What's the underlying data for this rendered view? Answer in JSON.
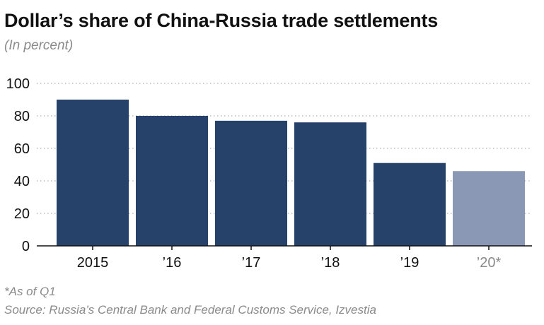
{
  "chart_data": {
    "type": "bar",
    "title": "Dollar’s share of China-Russia trade settlements",
    "subtitle": "(In percent)",
    "categories": [
      "2015",
      "’16",
      "’17",
      "’18",
      "’19",
      "’20*"
    ],
    "values": [
      90,
      80,
      77,
      76,
      51,
      46
    ],
    "ylim": [
      0,
      100
    ],
    "yticks": [
      0,
      20,
      40,
      60,
      80,
      100
    ],
    "grid": true,
    "bar_colors": [
      "#26426b",
      "#26426b",
      "#26426b",
      "#26426b",
      "#26426b",
      "#8a98b6"
    ],
    "tick_label_colors": [
      "#111111",
      "#111111",
      "#111111",
      "#111111",
      "#111111",
      "#8a8a8a"
    ]
  },
  "footnote": "*As of Q1",
  "source": "Source: Russia’s Central Bank and Federal Customs Service, Izvestia"
}
